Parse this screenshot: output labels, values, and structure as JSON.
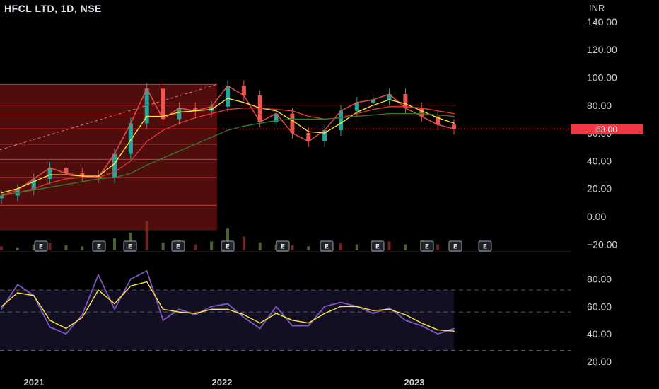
{
  "header": {
    "title": "HFCL LTD, 1D, NSE",
    "currency": "INR"
  },
  "last_price": {
    "label": "63.00",
    "value": 63.0
  },
  "colors": {
    "price_up": "#26a69a",
    "price_down": "#ef5350",
    "ma_fast": "#ffeb3b",
    "ma_slow": "#e53935",
    "ma_long": "#2e7d32",
    "rsi": "#7e57c2",
    "rsi_signal": "#ffeb3b",
    "fib_fill": "#6b1111",
    "badge": "#f23645"
  },
  "events": [
    "E",
    "E",
    "E",
    "E",
    "E",
    "E",
    "E",
    "E",
    "E",
    "E",
    "E"
  ],
  "chart_data": [
    {
      "type": "line",
      "title": "HFCL LTD, 1D, NSE",
      "ylabel": "INR",
      "ylim": [
        -20,
        140
      ],
      "y_ticks": [
        "140.00",
        "120.00",
        "100.00",
        "80.00",
        "60.00",
        "40.00",
        "20.00",
        "0.00",
        "−20.00"
      ],
      "x_ticks": [
        "2021",
        "2022",
        "2023"
      ],
      "x": [
        "2020-11-01",
        "2020-12-01",
        "2021-01-01",
        "2021-02-01",
        "2021-03-01",
        "2021-04-01",
        "2021-05-01",
        "2021-06-01",
        "2021-07-01",
        "2021-08-01",
        "2021-09-01",
        "2021-10-01",
        "2021-11-01",
        "2021-12-01",
        "2022-01-01",
        "2022-02-01",
        "2022-03-01",
        "2022-04-01",
        "2022-05-01",
        "2022-06-01",
        "2022-07-01",
        "2022-08-01",
        "2022-09-01",
        "2022-10-01",
        "2022-11-01",
        "2022-12-01",
        "2023-01-01",
        "2023-02-01",
        "2023-03-01"
      ],
      "series": [
        {
          "name": "",
          "values": [
            15,
            19,
            27,
            35,
            31,
            29,
            28,
            45,
            67,
            92,
            70,
            78,
            76,
            79,
            94,
            87,
            68,
            74,
            60,
            54,
            62,
            76,
            82,
            84,
            88,
            78,
            72,
            66,
            63
          ]
        },
        {
          "name": "",
          "values": [
            17,
            20,
            25,
            30,
            30,
            29,
            29,
            38,
            55,
            72,
            72,
            75,
            76,
            77,
            85,
            82,
            78,
            76,
            69,
            61,
            60,
            67,
            75,
            80,
            84,
            81,
            76,
            71,
            67
          ]
        },
        {
          "name": "",
          "values": [
            15,
            17,
            20,
            24,
            27,
            28,
            28,
            32,
            40,
            54,
            62,
            67,
            71,
            74,
            77,
            78,
            78,
            77,
            76,
            72,
            70,
            71,
            74,
            77,
            79,
            79,
            78,
            76,
            74
          ]
        },
        {
          "name": "",
          "values": [
            16,
            17,
            19,
            21,
            23,
            25,
            27,
            28,
            31,
            37,
            42,
            47,
            52,
            57,
            62,
            65,
            67,
            69,
            70,
            70,
            70,
            71,
            72,
            73,
            74,
            74,
            74,
            73,
            72
          ]
        }
      ]
    },
    {
      "type": "line",
      "ylim": [
        20,
        90
      ],
      "y_ticks": [
        "80.00",
        "60.00",
        "40.00",
        "20.00"
      ],
      "bands": [
        28,
        72
      ],
      "series": [
        {
          "name": "",
          "values": [
            58,
            76,
            68,
            45,
            40,
            54,
            83,
            58,
            80,
            86,
            50,
            58,
            54,
            60,
            62,
            52,
            44,
            60,
            46,
            46,
            60,
            63,
            60,
            55,
            59,
            50,
            46,
            40,
            44
          ]
        },
        {
          "name": "",
          "values": [
            60,
            70,
            68,
            50,
            44,
            52,
            72,
            62,
            75,
            78,
            58,
            56,
            55,
            58,
            58,
            54,
            48,
            55,
            50,
            48,
            55,
            60,
            60,
            57,
            58,
            54,
            48,
            43,
            42
          ]
        }
      ]
    }
  ]
}
